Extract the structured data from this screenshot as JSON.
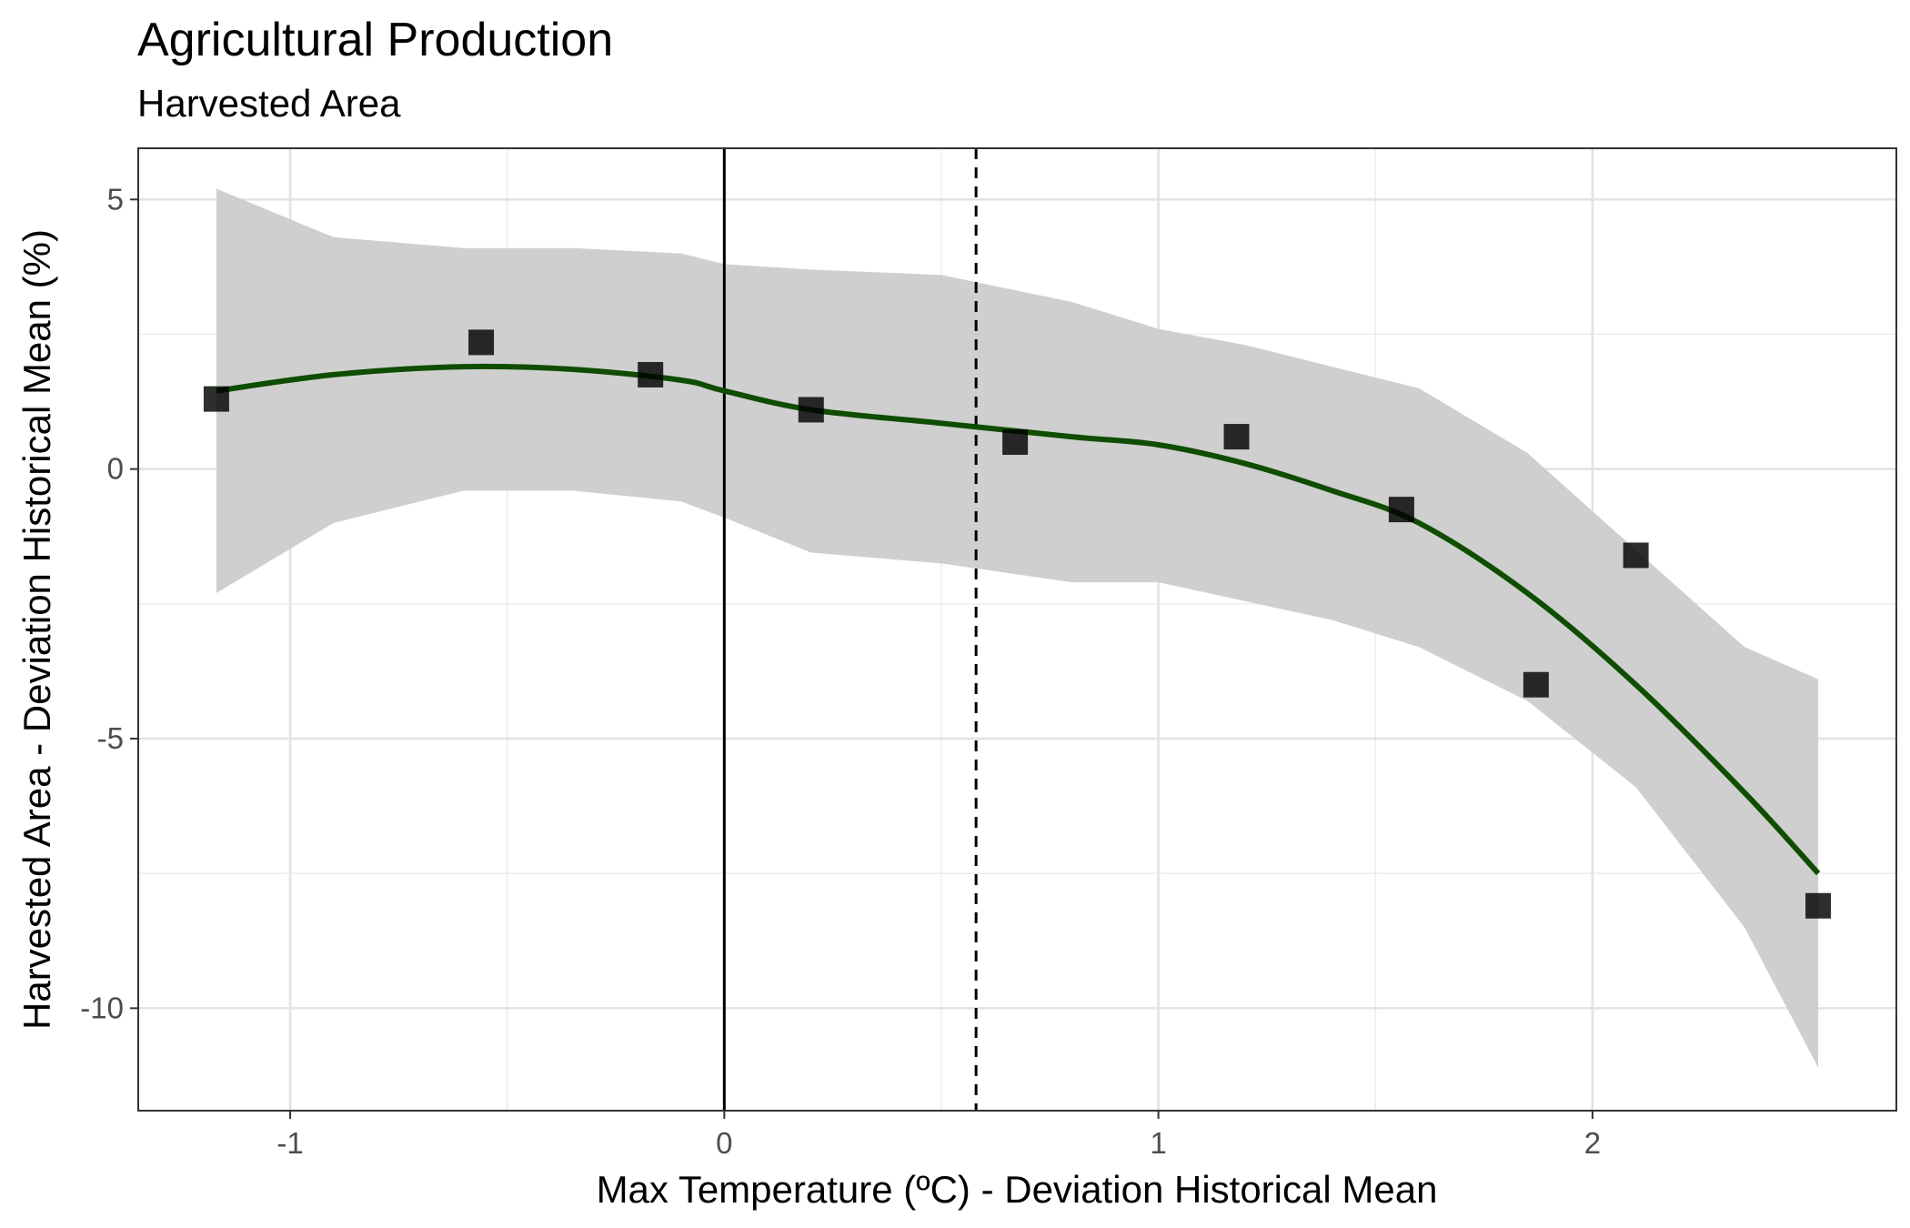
{
  "chart_data": {
    "type": "scatter",
    "title": "Agricultural Production",
    "subtitle": "Harvested Area",
    "xlabel": "Max Temperature (ºC) - Deviation Historical Mean",
    "ylabel": "Harvested Area - Deviation Historical Mean (%)",
    "xlim": [
      -1.35,
      2.7
    ],
    "ylim": [
      -11.9,
      5.95
    ],
    "x_ticks": [
      -1,
      0,
      1,
      2
    ],
    "y_ticks": [
      5,
      0,
      -5,
      -10
    ],
    "x_tick_labels": [
      "-1",
      "0",
      "1",
      "2"
    ],
    "y_tick_labels": [
      "5",
      "0",
      "-5",
      "-10"
    ],
    "grid": true,
    "points": [
      {
        "x": -1.17,
        "y": 1.3
      },
      {
        "x": -0.56,
        "y": 2.35
      },
      {
        "x": -0.17,
        "y": 1.75
      },
      {
        "x": 0.2,
        "y": 1.1
      },
      {
        "x": 0.67,
        "y": 0.5
      },
      {
        "x": 1.18,
        "y": 0.6
      },
      {
        "x": 1.56,
        "y": -0.75
      },
      {
        "x": 1.87,
        "y": -4.0
      },
      {
        "x": 2.1,
        "y": -1.6
      },
      {
        "x": 2.52,
        "y": -8.1
      }
    ],
    "smooth_line": {
      "color": "#0f4d00",
      "x": [
        -1.17,
        -0.9,
        -0.6,
        -0.35,
        -0.1,
        0.0,
        0.2,
        0.5,
        0.8,
        1.0,
        1.2,
        1.4,
        1.6,
        1.85,
        2.1,
        2.35,
        2.52
      ],
      "y": [
        1.45,
        1.75,
        1.9,
        1.85,
        1.65,
        1.45,
        1.1,
        0.85,
        0.6,
        0.45,
        0.1,
        -0.4,
        -1.0,
        -2.3,
        -4.0,
        -6.0,
        -7.5
      ]
    },
    "confidence_band": {
      "color": "#cccccc",
      "x": [
        -1.17,
        -0.9,
        -0.6,
        -0.35,
        -0.1,
        0.0,
        0.2,
        0.5,
        0.8,
        1.0,
        1.2,
        1.4,
        1.6,
        1.85,
        2.1,
        2.35,
        2.52
      ],
      "upper": [
        5.2,
        4.3,
        4.1,
        4.1,
        4.0,
        3.8,
        3.7,
        3.6,
        3.1,
        2.6,
        2.3,
        1.9,
        1.5,
        0.3,
        -1.5,
        -3.3,
        -3.9
      ],
      "lower": [
        -2.3,
        -1.0,
        -0.4,
        -0.4,
        -0.6,
        -0.9,
        -1.55,
        -1.75,
        -2.1,
        -2.1,
        -2.45,
        -2.8,
        -3.3,
        -4.3,
        -5.9,
        -8.5,
        -11.1
      ]
    },
    "vlines": [
      {
        "x": 0.0,
        "style": "solid"
      },
      {
        "x": 0.58,
        "style": "dashed"
      }
    ]
  }
}
